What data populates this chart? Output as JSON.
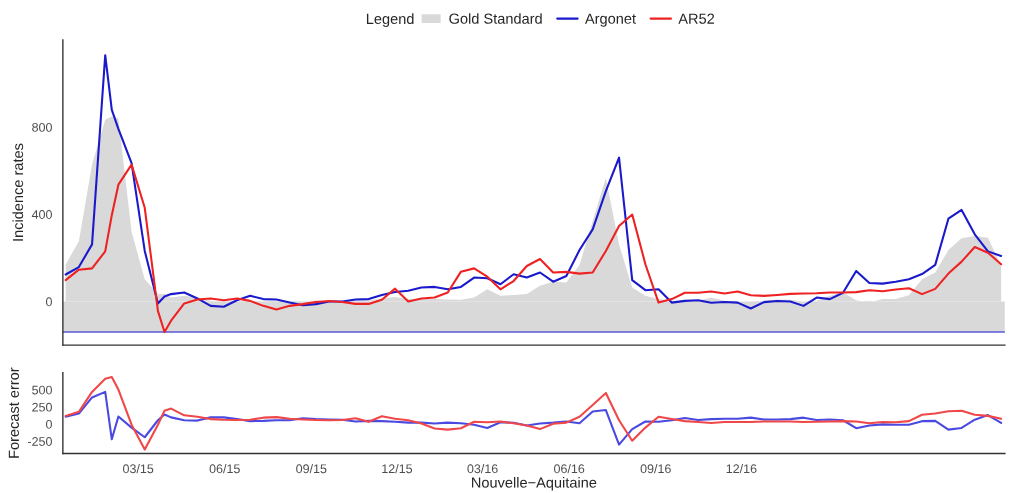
{
  "chart_data": [
    {
      "type": "line",
      "ylabel": "Incidence rates",
      "legend_title": "Legend",
      "legend": "top",
      "x": [
        "2014-12-14",
        "2014-12-28",
        "2015-01-11",
        "2015-01-25",
        "2015-02-01",
        "2015-02-08",
        "2015-02-22",
        "2015-03-08",
        "2015-03-22",
        "2015-03-29",
        "2015-04-05",
        "2015-04-19",
        "2015-05-03",
        "2015-05-17",
        "2015-05-31",
        "2015-06-14",
        "2015-06-28",
        "2015-07-12",
        "2015-07-26",
        "2015-08-09",
        "2015-08-23",
        "2015-09-06",
        "2015-09-20",
        "2015-10-04",
        "2015-10-18",
        "2015-11-01",
        "2015-11-15",
        "2015-11-29",
        "2015-12-13",
        "2015-12-27",
        "2016-01-10",
        "2016-01-24",
        "2016-02-07",
        "2016-02-21",
        "2016-03-06",
        "2016-03-20",
        "2016-04-03",
        "2016-04-17",
        "2016-05-01",
        "2016-05-15",
        "2016-05-29",
        "2016-06-12",
        "2016-06-26",
        "2016-07-10",
        "2016-07-24",
        "2016-08-07",
        "2016-08-21",
        "2016-09-04",
        "2016-09-18",
        "2016-10-02",
        "2016-10-16",
        "2016-10-30",
        "2016-11-13",
        "2016-11-27",
        "2016-12-11",
        "2016-12-25",
        "2017-01-08",
        "2017-01-22",
        "2017-02-05",
        "2017-02-19",
        "2017-03-05",
        "2017-03-19",
        "2017-04-02",
        "2017-04-16",
        "2017-04-30",
        "2017-05-14",
        "2017-05-28",
        "2017-06-11",
        "2017-06-25",
        "2017-07-09",
        "2017-07-23",
        "2017-08-06",
        "2017-08-20",
        "2017-09-03"
      ],
      "xlim": [
        "2014-12-11",
        "2017-09-07"
      ],
      "xticks": [
        {
          "value": "2015-03-01",
          "label": null
        },
        {
          "value": "2015-06-01",
          "label": null
        },
        {
          "value": "2015-09-01",
          "label": null
        },
        {
          "value": "2015-12-01",
          "label": null
        },
        {
          "value": "2016-03-01",
          "label": null
        },
        {
          "value": "2016-06-01",
          "label": null
        },
        {
          "value": "2016-09-01",
          "label": null
        },
        {
          "value": "2016-12-01",
          "label": null
        }
      ],
      "ylim": [
        -200,
        1200
      ],
      "yticks": [
        0,
        400,
        800
      ],
      "tick_labels": "y",
      "grid": false,
      "ref_lines": [
        {
          "axis": "y",
          "value": -140,
          "color": "#5a5ad8"
        }
      ],
      "bands": [
        {
          "axis": "y",
          "from": -140,
          "to": 0,
          "color": "#d9d9d9"
        }
      ],
      "series": [
        {
          "name": "Gold Standard",
          "type": "area",
          "color": "#d9d9d9",
          "values": [
            170,
            277,
            628,
            834,
            849,
            840,
            320,
            102,
            34,
            34,
            18,
            26,
            18,
            3,
            -5,
            0,
            5,
            0,
            -5,
            -5,
            0,
            5,
            0,
            0,
            5,
            5,
            14,
            21,
            11,
            11,
            11,
            9,
            8,
            18,
            56,
            26,
            30,
            34,
            72,
            91,
            87,
            168,
            369,
            567,
            262,
            64,
            26,
            11,
            3,
            3,
            3,
            18,
            3,
            0,
            0,
            3,
            9,
            8,
            0,
            3,
            26,
            41,
            6,
            -5,
            11,
            11,
            29,
            102,
            133,
            236,
            290,
            300,
            293,
            163
          ]
        },
        {
          "name": "Argonet",
          "color": "#1a1acc",
          "values": [
            124,
            158,
            262,
            1130,
            879,
            792,
            635,
            232,
            -9,
            23,
            34,
            41,
            14,
            -20,
            -24,
            6,
            26,
            11,
            9,
            -5,
            -17,
            -12,
            0,
            0,
            9,
            11,
            30,
            44,
            49,
            64,
            67,
            56,
            67,
            110,
            107,
            79,
            125,
            110,
            133,
            91,
            117,
            236,
            331,
            506,
            660,
            98,
            52,
            56,
            -5,
            3,
            6,
            -6,
            -2,
            -5,
            -32,
            -3,
            2,
            0,
            -20,
            18,
            11,
            40,
            140,
            85,
            82,
            91,
            102,
            126,
            168,
            380,
            420,
            308,
            230,
            209
          ]
        },
        {
          "name": "AR52",
          "color": "#ee2222",
          "values": [
            98,
            146,
            152,
            230,
            396,
            536,
            628,
            430,
            -43,
            -140,
            -88,
            -9,
            9,
            14,
            6,
            14,
            3,
            -20,
            -37,
            -20,
            -12,
            -2,
            2,
            -2,
            -11,
            -11,
            8,
            59,
            0,
            14,
            18,
            41,
            137,
            152,
            114,
            56,
            94,
            163,
            195,
            133,
            136,
            128,
            133,
            232,
            346,
            399,
            171,
            -5,
            11,
            40,
            40,
            46,
            37,
            46,
            29,
            26,
            30,
            35,
            37,
            38,
            41,
            41,
            43,
            52,
            47,
            55,
            61,
            34,
            58,
            128,
            183,
            250,
            224,
            171
          ]
        }
      ]
    },
    {
      "type": "line",
      "ylabel": "Forecast error",
      "xlabel": "Nouvelle−Aquitaine",
      "x": [
        "2014-12-14",
        "2014-12-28",
        "2015-01-11",
        "2015-01-25",
        "2015-02-01",
        "2015-02-08",
        "2015-02-22",
        "2015-03-08",
        "2015-03-22",
        "2015-03-29",
        "2015-04-05",
        "2015-04-19",
        "2015-05-03",
        "2015-05-17",
        "2015-05-31",
        "2015-06-14",
        "2015-06-28",
        "2015-07-12",
        "2015-07-26",
        "2015-08-09",
        "2015-08-23",
        "2015-09-06",
        "2015-09-20",
        "2015-10-04",
        "2015-10-18",
        "2015-11-01",
        "2015-11-15",
        "2015-11-29",
        "2015-12-13",
        "2015-12-27",
        "2016-01-10",
        "2016-01-24",
        "2016-02-07",
        "2016-02-21",
        "2016-03-06",
        "2016-03-20",
        "2016-04-03",
        "2016-04-17",
        "2016-05-01",
        "2016-05-15",
        "2016-05-29",
        "2016-06-12",
        "2016-06-26",
        "2016-07-10",
        "2016-07-24",
        "2016-08-07",
        "2016-08-21",
        "2016-09-04",
        "2016-09-18",
        "2016-10-02",
        "2016-10-16",
        "2016-10-30",
        "2016-11-13",
        "2016-11-27",
        "2016-12-11",
        "2016-12-25",
        "2017-01-08",
        "2017-01-22",
        "2017-02-05",
        "2017-02-19",
        "2017-03-05",
        "2017-03-19",
        "2017-04-02",
        "2017-04-16",
        "2017-04-30",
        "2017-05-14",
        "2017-05-28",
        "2017-06-11",
        "2017-06-25",
        "2017-07-09",
        "2017-07-23",
        "2017-08-06",
        "2017-08-20",
        "2017-09-03"
      ],
      "xlim": [
        "2014-12-11",
        "2017-09-07"
      ],
      "xticks": [
        {
          "value": "2015-03-01",
          "label": "03/15"
        },
        {
          "value": "2015-06-01",
          "label": "06/15"
        },
        {
          "value": "2015-09-01",
          "label": "09/15"
        },
        {
          "value": "2015-12-01",
          "label": "12/15"
        },
        {
          "value": "2016-03-01",
          "label": "03/16"
        },
        {
          "value": "2016-06-01",
          "label": "06/16"
        },
        {
          "value": "2016-09-01",
          "label": "09/16"
        },
        {
          "value": "2016-12-01",
          "label": "12/16"
        }
      ],
      "ylim": [
        -430,
        750
      ],
      "yticks": [
        -250,
        0,
        250,
        500
      ],
      "grid": false,
      "series": [
        {
          "color": "#4a4ae0",
          "values": [
            107,
            154,
            389,
            470,
            -222,
            111,
            -51,
            -192,
            56,
            141,
            98,
            56,
            51,
            98,
            98,
            73,
            43,
            47,
            56,
            56,
            85,
            73,
            68,
            64,
            38,
            47,
            43,
            34,
            21,
            21,
            9,
            21,
            13,
            -9,
            -56,
            26,
            20,
            -21,
            9,
            21,
            38,
            13,
            184,
            205,
            -299,
            -73,
            38,
            34,
            56,
            90,
            60,
            73,
            77,
            77,
            94,
            68,
            68,
            73,
            94,
            60,
            68,
            56,
            -60,
            -21,
            -4,
            -9,
            -9,
            43,
            47,
            -81,
            -56,
            64,
            132,
            17
          ]
        },
        {
          "color": "#f04848",
          "values": [
            120,
            179,
            470,
            662,
            687,
            504,
            -9,
            -371,
            -9,
            196,
            226,
            128,
            107,
            73,
            64,
            60,
            64,
            94,
            102,
            77,
            68,
            60,
            56,
            60,
            85,
            34,
            115,
            77,
            56,
            9,
            -64,
            -81,
            -60,
            34,
            26,
            38,
            11,
            -21,
            -73,
            4,
            21,
            107,
            278,
            453,
            56,
            -243,
            -51,
            107,
            73,
            43,
            30,
            17,
            30,
            30,
            30,
            38,
            38,
            38,
            30,
            34,
            38,
            43,
            38,
            13,
            30,
            26,
            43,
            137,
            154,
            188,
            196,
            137,
            120,
            77
          ]
        }
      ]
    }
  ]
}
